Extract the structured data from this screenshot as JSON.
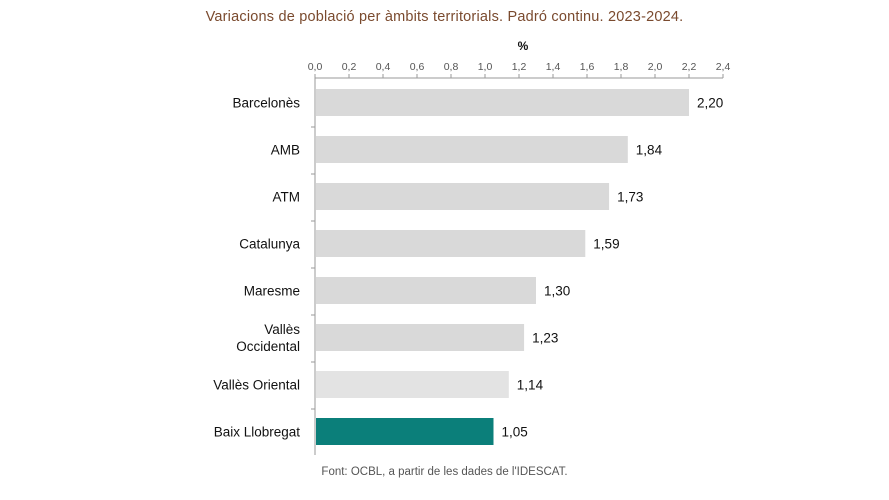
{
  "header": {
    "title": "Variacions de població per àmbits territorials. Padró continu. 2023-2024."
  },
  "footer": {
    "source": "Font: OCBL, a partir de les dades de l'IDESCAT."
  },
  "chart_data": {
    "type": "bar",
    "orientation": "horizontal",
    "title": "Variacions de població per àmbits territorials. Padró continu. 2023-2024.",
    "xlabel": "%",
    "ylabel": "",
    "xlim": [
      0,
      2.4
    ],
    "x_ticks": [
      "0,0",
      "0,2",
      "0,4",
      "0,6",
      "0,8",
      "1,0",
      "1,2",
      "1,4",
      "1,6",
      "1,8",
      "2,0",
      "2,2",
      "2,4"
    ],
    "x_axis_position": "top",
    "grid": false,
    "categories": [
      [
        "Barcelonès"
      ],
      [
        "AMB"
      ],
      [
        "ATM"
      ],
      [
        "Catalunya"
      ],
      [
        "Maresme"
      ],
      [
        "Vallès",
        "Occidental"
      ],
      [
        "Vallès Oriental"
      ],
      [
        "Baix Llobregat"
      ]
    ],
    "values": [
      2.2,
      1.84,
      1.73,
      1.59,
      1.3,
      1.23,
      1.14,
      1.05
    ],
    "value_labels": [
      "2,20",
      "1,84",
      "1,73",
      "1,59",
      "1,30",
      "1,23",
      "1,14",
      "1,05"
    ],
    "colors": [
      "#d9d9d9",
      "#d9d9d9",
      "#d9d9d9",
      "#d9d9d9",
      "#d9d9d9",
      "#d9d9d9",
      "#e3e3e3",
      "#0b7f7a"
    ],
    "highlight": "Baix Llobregat"
  }
}
